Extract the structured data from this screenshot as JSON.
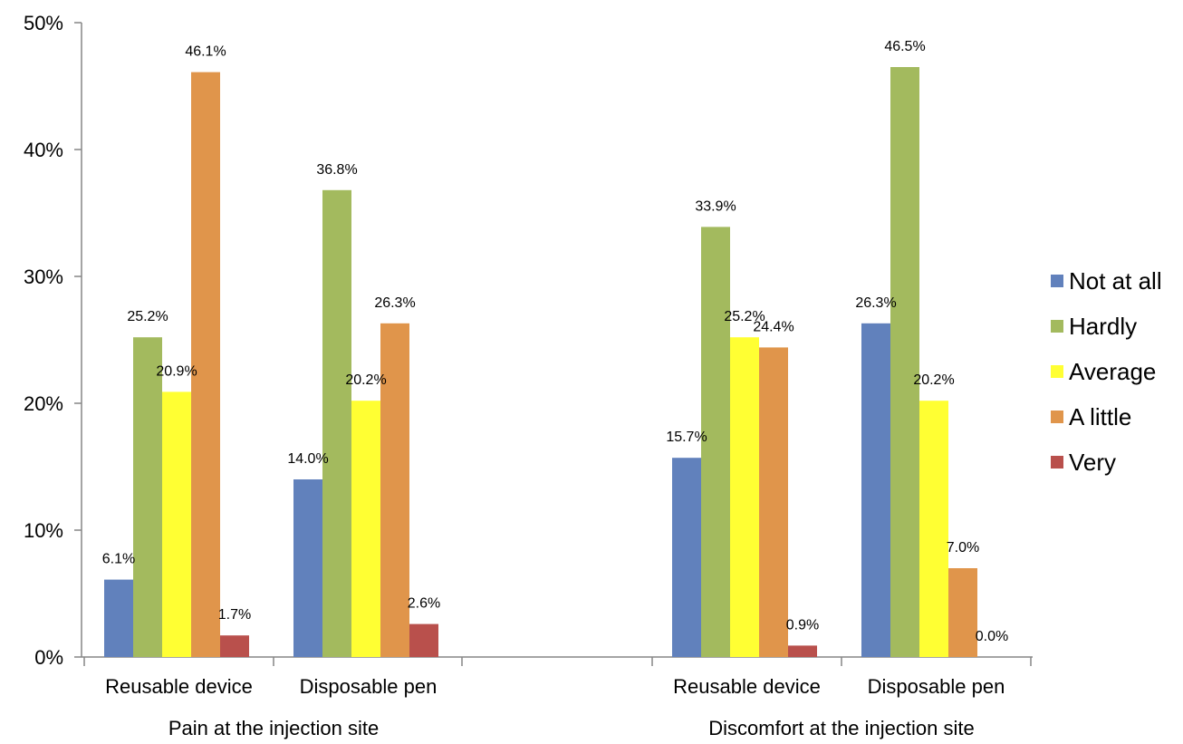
{
  "chart_data": {
    "type": "bar",
    "title": "",
    "xlabel": "",
    "ylabel": "",
    "ylim": [
      0,
      50
    ],
    "y_ticks": [
      0,
      10,
      20,
      30,
      40,
      50
    ],
    "y_tick_format": "{v}%",
    "grid": false,
    "legend_position": "right",
    "groups": [
      {
        "label": "Pain at the injection site",
        "categories": [
          {
            "label": "Reusable device",
            "values": [
              6.1,
              25.2,
              20.9,
              46.1,
              1.7
            ]
          },
          {
            "label": "Disposable pen",
            "values": [
              14.0,
              36.8,
              20.2,
              26.3,
              2.6
            ]
          }
        ]
      },
      {
        "label": "Discomfort at the injection site",
        "categories": [
          {
            "label": "Reusable device",
            "values": [
              15.7,
              33.9,
              25.2,
              24.4,
              0.9
            ]
          },
          {
            "label": "Disposable pen",
            "values": [
              26.3,
              46.5,
              20.2,
              7.0,
              0.0
            ]
          }
        ]
      }
    ],
    "series": [
      {
        "name": "Not at all",
        "color": "#6181BC"
      },
      {
        "name": "Hardly",
        "color": "#A3BA5E"
      },
      {
        "name": "Average",
        "color": "#FFFF33"
      },
      {
        "name": "A little",
        "color": "#E0954B"
      },
      {
        "name": "Very",
        "color": "#B9504C"
      }
    ]
  }
}
